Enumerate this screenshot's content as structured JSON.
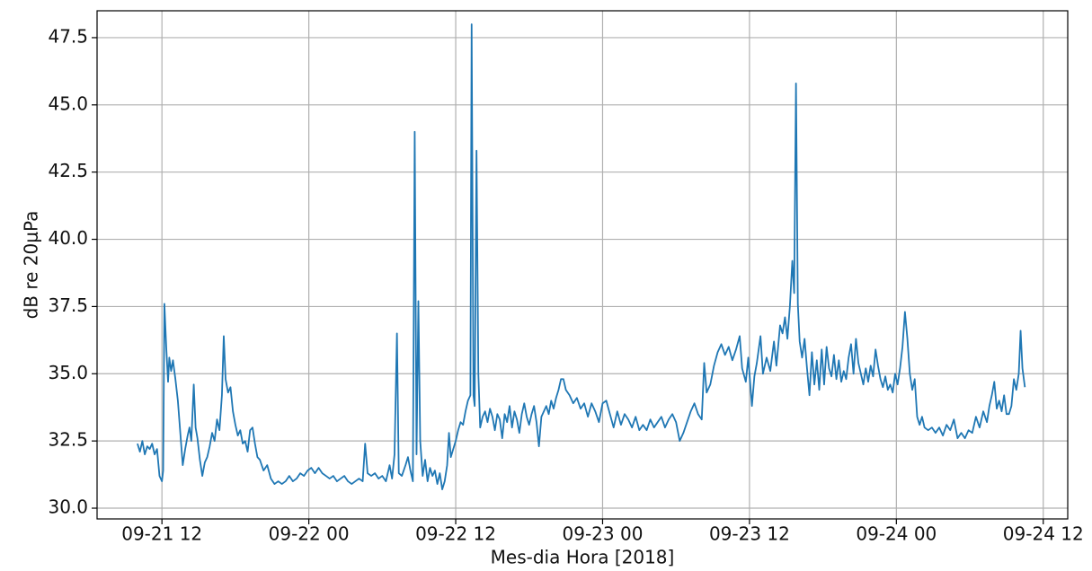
{
  "chart_data": {
    "type": "line",
    "xlabel": "Mes-dia Hora [2018]",
    "ylabel": "dB re 20μPa",
    "color": "#1f77b4",
    "grid": true,
    "xlim": [
      6.7,
      86.0
    ],
    "ylim": [
      29.6,
      48.5
    ],
    "xticks": [
      {
        "value": 12,
        "label": "09-21 12"
      },
      {
        "value": 24,
        "label": "09-22 00"
      },
      {
        "value": 36,
        "label": "09-22 12"
      },
      {
        "value": 48,
        "label": "09-23 00"
      },
      {
        "value": 60,
        "label": "09-23 12"
      },
      {
        "value": 72,
        "label": "09-24 00"
      },
      {
        "value": 84,
        "label": "09-24 12"
      }
    ],
    "yticks": [
      {
        "value": 30,
        "label": "30.0"
      },
      32.5,
      {
        "value": 35,
        "label": "35.0"
      },
      37.5,
      {
        "value": 40,
        "label": "40.0"
      },
      42.5,
      {
        "value": 45,
        "label": "45.0"
      },
      47.5
    ],
    "x": [
      10.0,
      10.2,
      10.4,
      10.6,
      10.8,
      11.0,
      11.2,
      11.4,
      11.6,
      11.8,
      12.0,
      12.1,
      12.2,
      12.35,
      12.5,
      12.6,
      12.75,
      12.9,
      13.1,
      13.3,
      13.5,
      13.7,
      13.9,
      14.1,
      14.25,
      14.4,
      14.6,
      14.75,
      14.9,
      15.1,
      15.3,
      15.5,
      15.7,
      15.9,
      16.1,
      16.3,
      16.5,
      16.7,
      16.9,
      17.05,
      17.2,
      17.4,
      17.6,
      17.8,
      18.0,
      18.2,
      18.4,
      18.6,
      18.8,
      19.0,
      19.2,
      19.4,
      19.6,
      19.8,
      20.0,
      20.3,
      20.6,
      20.9,
      21.2,
      21.5,
      21.8,
      22.1,
      22.4,
      22.7,
      23.0,
      23.3,
      23.6,
      23.9,
      24.2,
      24.5,
      24.8,
      25.1,
      25.4,
      25.7,
      26.0,
      26.3,
      26.6,
      26.9,
      27.2,
      27.5,
      27.8,
      28.1,
      28.4,
      28.6,
      28.8,
      29.1,
      29.4,
      29.7,
      30.0,
      30.3,
      30.6,
      30.8,
      31.0,
      31.2,
      31.35,
      31.6,
      31.9,
      32.1,
      32.3,
      32.5,
      32.65,
      32.8,
      32.95,
      33.1,
      33.3,
      33.5,
      33.7,
      33.9,
      34.1,
      34.3,
      34.5,
      34.7,
      34.9,
      35.1,
      35.3,
      35.45,
      35.6,
      35.8,
      36.0,
      36.2,
      36.4,
      36.6,
      36.8,
      37.0,
      37.2,
      37.3,
      37.45,
      37.55,
      37.7,
      37.85,
      38.0,
      38.2,
      38.4,
      38.6,
      38.8,
      39.0,
      39.2,
      39.4,
      39.6,
      39.8,
      40.0,
      40.2,
      40.4,
      40.6,
      40.8,
      41.0,
      41.2,
      41.4,
      41.6,
      41.8,
      42.0,
      42.2,
      42.4,
      42.6,
      42.8,
      43.0,
      43.2,
      43.4,
      43.6,
      43.8,
      44.0,
      44.2,
      44.4,
      44.6,
      44.8,
      45.0,
      45.3,
      45.6,
      45.9,
      46.2,
      46.5,
      46.8,
      47.1,
      47.4,
      47.7,
      48.0,
      48.3,
      48.6,
      48.9,
      49.2,
      49.5,
      49.8,
      50.1,
      50.4,
      50.7,
      51.0,
      51.3,
      51.6,
      51.9,
      52.2,
      52.5,
      52.8,
      53.1,
      53.4,
      53.7,
      54.0,
      54.3,
      54.6,
      54.9,
      55.2,
      55.5,
      55.8,
      56.1,
      56.3,
      56.5,
      56.8,
      57.1,
      57.4,
      57.7,
      58.0,
      58.3,
      58.6,
      58.9,
      59.2,
      59.4,
      59.7,
      59.9,
      60.2,
      60.4,
      60.6,
      60.9,
      61.1,
      61.4,
      61.7,
      62.0,
      62.2,
      62.5,
      62.7,
      62.9,
      63.1,
      63.3,
      63.5,
      63.65,
      63.8,
      63.95,
      64.1,
      64.3,
      64.5,
      64.7,
      64.9,
      65.1,
      65.3,
      65.5,
      65.7,
      65.9,
      66.1,
      66.3,
      66.5,
      66.7,
      66.9,
      67.1,
      67.3,
      67.5,
      67.7,
      67.9,
      68.1,
      68.3,
      68.5,
      68.7,
      68.9,
      69.1,
      69.3,
      69.5,
      69.7,
      69.9,
      70.1,
      70.3,
      70.5,
      70.7,
      70.9,
      71.1,
      71.3,
      71.5,
      71.7,
      71.9,
      72.1,
      72.3,
      72.5,
      72.7,
      72.9,
      73.1,
      73.3,
      73.5,
      73.7,
      73.9,
      74.1,
      74.3,
      74.6,
      74.9,
      75.2,
      75.5,
      75.8,
      76.1,
      76.4,
      76.7,
      77.0,
      77.3,
      77.6,
      77.9,
      78.2,
      78.5,
      78.8,
      79.1,
      79.4,
      79.6,
      79.8,
      80.0,
      80.2,
      80.4,
      80.6,
      80.8,
      81.0,
      81.2,
      81.4,
      81.6,
      81.8,
      82.0,
      82.15,
      82.3,
      82.5
    ],
    "values": [
      32.4,
      32.1,
      32.5,
      32.0,
      32.3,
      32.2,
      32.4,
      32.0,
      32.2,
      31.2,
      31.0,
      31.4,
      37.6,
      36.0,
      34.7,
      35.6,
      35.1,
      35.5,
      34.8,
      34.0,
      32.8,
      31.6,
      32.2,
      32.7,
      33.0,
      32.5,
      34.6,
      33.0,
      32.6,
      31.8,
      31.2,
      31.7,
      31.9,
      32.3,
      32.8,
      32.5,
      33.3,
      32.9,
      34.2,
      36.4,
      34.8,
      34.3,
      34.5,
      33.6,
      33.1,
      32.7,
      32.9,
      32.4,
      32.5,
      32.1,
      32.9,
      33.0,
      32.4,
      31.9,
      31.8,
      31.4,
      31.6,
      31.1,
      30.9,
      31.0,
      30.9,
      31.0,
      31.2,
      31.0,
      31.1,
      31.3,
      31.2,
      31.4,
      31.5,
      31.3,
      31.5,
      31.3,
      31.2,
      31.1,
      31.2,
      31.0,
      31.1,
      31.2,
      31.0,
      30.9,
      31.0,
      31.1,
      31.0,
      32.4,
      31.3,
      31.2,
      31.3,
      31.1,
      31.2,
      31.0,
      31.6,
      31.1,
      32.0,
      36.5,
      31.3,
      31.2,
      31.6,
      31.9,
      31.4,
      31.0,
      44.0,
      32.0,
      37.7,
      32.5,
      31.2,
      31.8,
      31.0,
      31.5,
      31.2,
      31.4,
      30.9,
      31.3,
      30.7,
      31.0,
      31.6,
      32.8,
      31.9,
      32.2,
      32.5,
      32.9,
      33.2,
      33.1,
      33.6,
      34.0,
      34.2,
      48.0,
      34.2,
      33.8,
      43.3,
      35.0,
      33.0,
      33.4,
      33.6,
      33.2,
      33.7,
      33.4,
      32.9,
      33.5,
      33.3,
      32.6,
      33.5,
      33.2,
      33.8,
      33.0,
      33.6,
      33.3,
      32.8,
      33.5,
      33.9,
      33.4,
      33.1,
      33.5,
      33.8,
      33.2,
      32.3,
      33.4,
      33.6,
      33.8,
      33.5,
      34.0,
      33.7,
      34.1,
      34.4,
      34.8,
      34.8,
      34.4,
      34.2,
      33.9,
      34.1,
      33.7,
      33.9,
      33.4,
      33.9,
      33.6,
      33.2,
      33.9,
      34.0,
      33.5,
      33.0,
      33.6,
      33.1,
      33.5,
      33.3,
      33.0,
      33.4,
      32.9,
      33.1,
      32.9,
      33.3,
      33.0,
      33.2,
      33.4,
      33.0,
      33.3,
      33.5,
      33.2,
      32.5,
      32.8,
      33.2,
      33.6,
      33.9,
      33.5,
      33.3,
      35.4,
      34.3,
      34.6,
      35.3,
      35.8,
      36.1,
      35.7,
      36.0,
      35.5,
      35.9,
      36.4,
      35.2,
      34.7,
      35.6,
      33.8,
      34.9,
      35.4,
      36.4,
      35.0,
      35.6,
      35.1,
      36.2,
      35.3,
      36.8,
      36.5,
      37.1,
      36.3,
      37.5,
      39.2,
      38.0,
      45.8,
      37.6,
      36.2,
      35.6,
      36.3,
      35.2,
      34.2,
      35.8,
      34.6,
      35.5,
      34.4,
      35.9,
      34.6,
      36.0,
      35.2,
      34.9,
      35.7,
      34.8,
      35.5,
      34.7,
      35.1,
      34.8,
      35.6,
      36.1,
      35.0,
      36.3,
      35.4,
      35.0,
      34.6,
      35.2,
      34.7,
      35.3,
      34.9,
      35.9,
      35.3,
      34.8,
      34.5,
      34.9,
      34.4,
      34.6,
      34.3,
      35.0,
      34.6,
      35.2,
      36.0,
      37.3,
      36.3,
      35.0,
      34.4,
      34.8,
      33.4,
      33.1,
      33.4,
      33.0,
      32.9,
      33.0,
      32.8,
      33.0,
      32.7,
      33.1,
      32.9,
      33.3,
      32.6,
      32.8,
      32.6,
      32.9,
      32.8,
      33.4,
      33.0,
      33.6,
      33.2,
      33.8,
      34.2,
      34.7,
      33.7,
      34.0,
      33.6,
      34.2,
      33.5,
      33.5,
      33.8,
      34.8,
      34.4,
      35.0,
      36.6,
      35.2,
      34.5
    ]
  }
}
